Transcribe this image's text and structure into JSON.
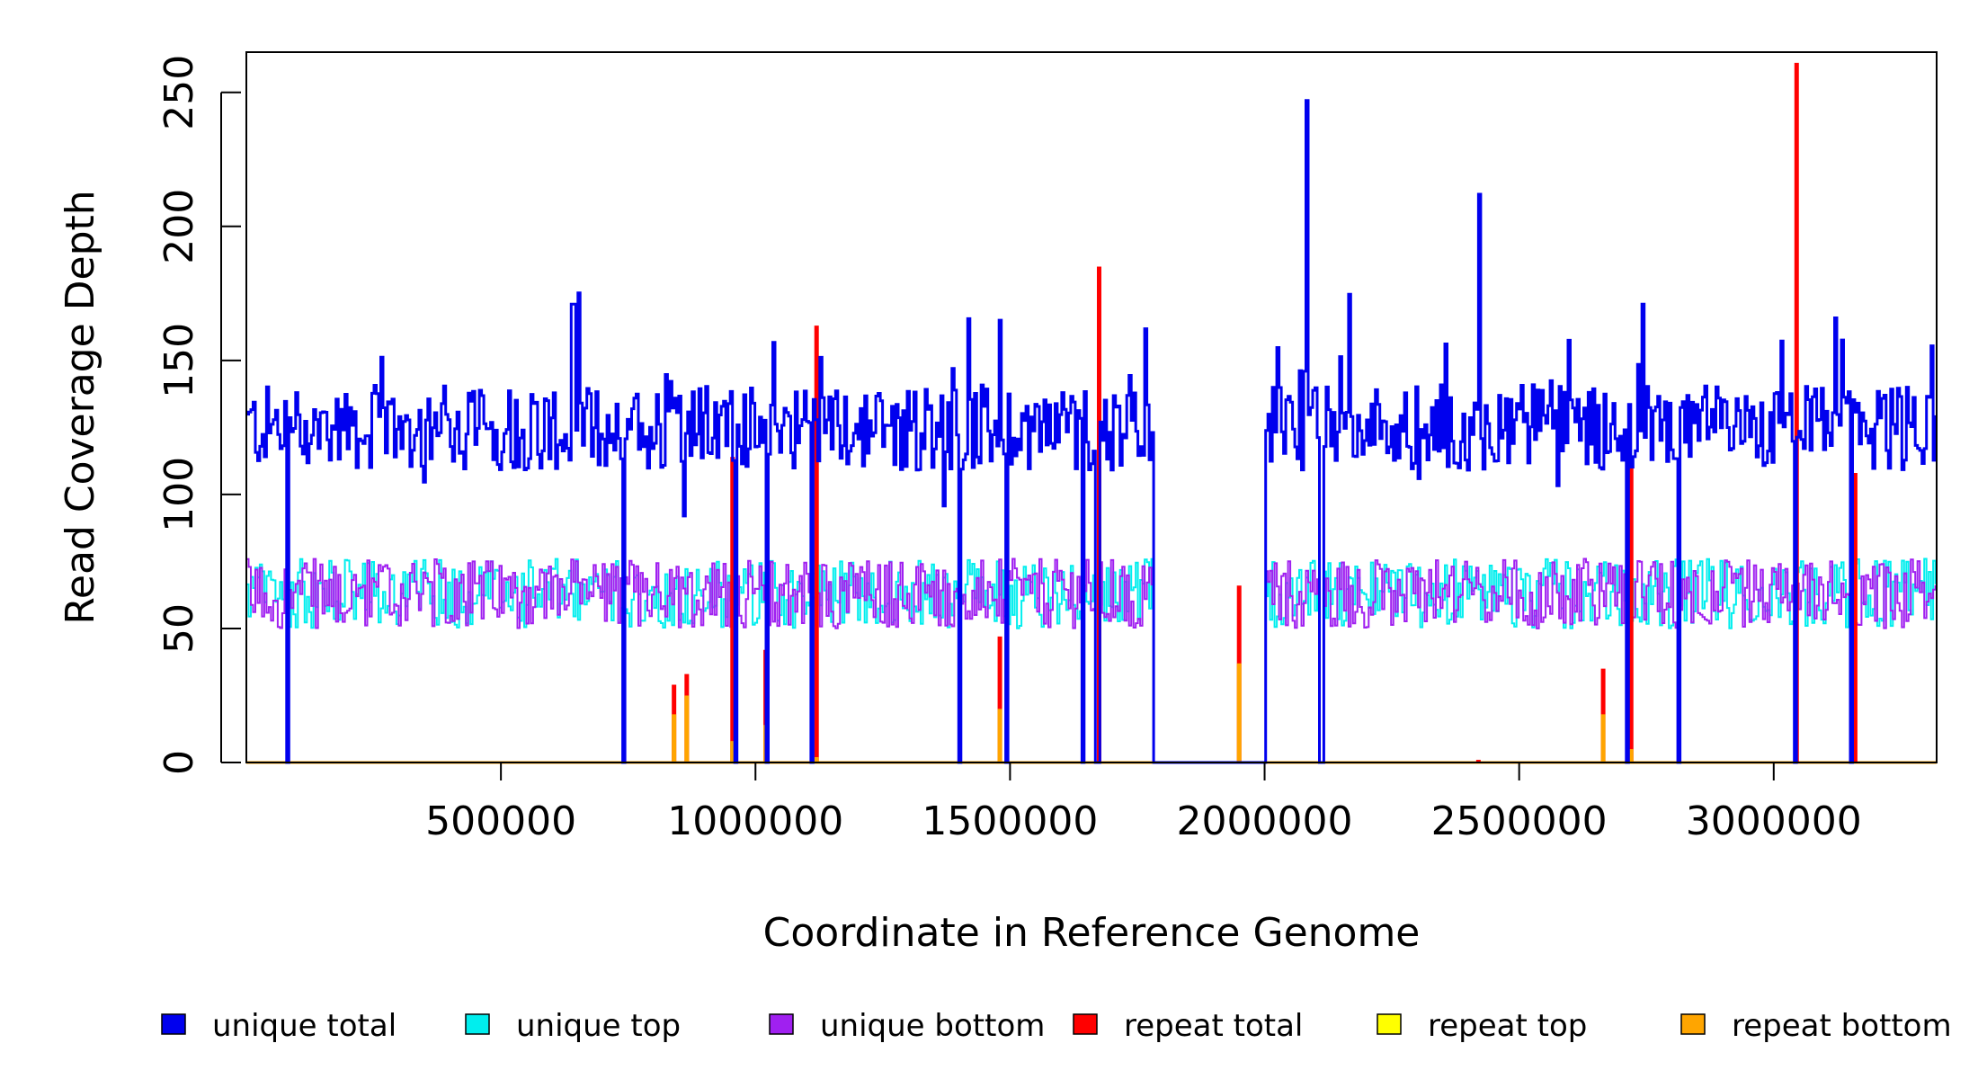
{
  "chart_data": {
    "type": "line",
    "xlabel": "Coordinate in Reference Genome",
    "ylabel": "Read Coverage Depth",
    "xlim": [
      0,
      3320000
    ],
    "ylim": [
      0,
      265
    ],
    "x_ticks": [
      500000,
      1000000,
      1500000,
      2000000,
      2500000,
      3000000
    ],
    "x_tick_labels": [
      "500000",
      "1000000",
      "1500000",
      "2000000",
      "2500000",
      "3000000"
    ],
    "y_ticks": [
      0,
      50,
      100,
      150,
      200,
      250
    ],
    "y_tick_labels": [
      "0",
      "50",
      "100",
      "150",
      "200",
      "250"
    ],
    "grid": false,
    "legend_position": "bottom",
    "colors": {
      "unique_total": "#0000ee",
      "unique_top": "#00eeee",
      "unique_bottom": "#a020f0",
      "repeat_total": "#ff0000",
      "repeat_top": "#ffff00",
      "repeat_bottom": "#ffa500"
    },
    "legend": [
      {
        "key": "unique_total",
        "label": "unique total",
        "color": "#0000ee"
      },
      {
        "key": "unique_top",
        "label": "unique top",
        "color": "#00eeee"
      },
      {
        "key": "unique_bottom",
        "label": "unique bottom",
        "color": "#a020f0"
      },
      {
        "key": "repeat_total",
        "label": "repeat total",
        "color": "#ff0000"
      },
      {
        "key": "repeat_top",
        "label": "repeat top",
        "color": "#ffff00"
      },
      {
        "key": "repeat_bottom",
        "label": "repeat bottom",
        "color": "#ffa500"
      }
    ],
    "series_model": {
      "unique_total_baseline": 125,
      "unique_strand_baseline": 63,
      "no_coverage_gap": [
        1780000,
        2000000
      ],
      "dropouts": [
        80000,
        740000,
        960000,
        1020000,
        1110000,
        1400000,
        1490000,
        1640000,
        1670000,
        2110000,
        2710000,
        2810000,
        3040000,
        3150000
      ],
      "unique_total_spikes": [
        {
          "x": 640000,
          "y": 171
        },
        {
          "x": 1480000,
          "y": 165
        },
        {
          "x": 2080000,
          "y": 247
        },
        {
          "x": 2420000,
          "y": 212
        },
        {
          "x": 2740000,
          "y": 171
        }
      ],
      "repeat_peaks": [
        {
          "x": 840000,
          "total": 29,
          "bottom": 18
        },
        {
          "x": 865000,
          "total": 33,
          "bottom": 25
        },
        {
          "x": 955000,
          "total": 114,
          "bottom": 8
        },
        {
          "x": 1020000,
          "total": 42,
          "bottom": 14
        },
        {
          "x": 1120000,
          "total": 163,
          "bottom": 2
        },
        {
          "x": 1480000,
          "total": 47,
          "bottom": 20
        },
        {
          "x": 1675000,
          "total": 185,
          "bottom": 0
        },
        {
          "x": 1950000,
          "total": 66,
          "bottom": 37
        },
        {
          "x": 2420000,
          "total": 1,
          "bottom": 0
        },
        {
          "x": 2665000,
          "total": 35,
          "bottom": 18
        },
        {
          "x": 2720000,
          "total": 112,
          "bottom": 5
        },
        {
          "x": 3045000,
          "total": 261,
          "bottom": 0
        },
        {
          "x": 3160000,
          "total": 108,
          "bottom": 0
        }
      ]
    }
  }
}
